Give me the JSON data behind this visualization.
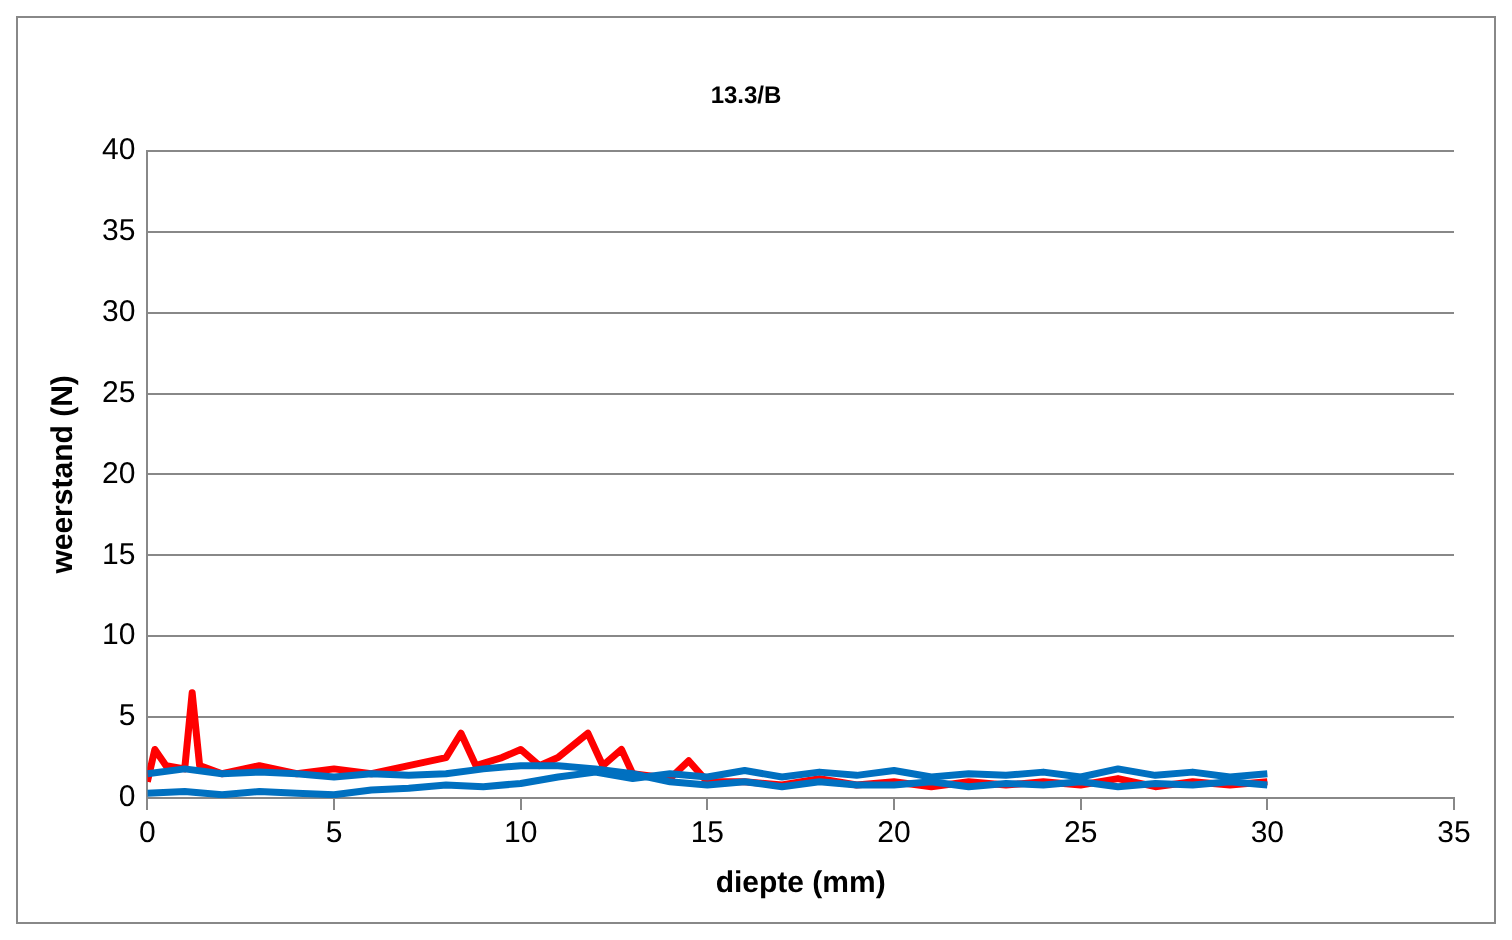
{
  "chart_data": {
    "type": "line",
    "title": "13.3/B",
    "xlabel": "diepte (mm)",
    "ylabel": "weerstand (N)",
    "xlim": [
      0,
      35
    ],
    "xticks": [
      0,
      5,
      10,
      15,
      20,
      25,
      30,
      35
    ],
    "ylim": [
      0,
      40
    ],
    "yticks": [
      0,
      5,
      10,
      15,
      20,
      25,
      30,
      35,
      40
    ],
    "grid": "y",
    "legend": false,
    "marker": "none",
    "line_style": "solid",
    "series": [
      {
        "color": "#0070c0",
        "x": [
          0,
          1,
          2,
          3,
          4,
          5,
          6,
          7,
          8,
          9,
          10,
          11,
          12,
          13,
          14,
          15,
          16,
          17,
          18,
          19,
          20,
          21,
          22,
          23,
          24,
          25,
          26,
          27,
          28,
          29,
          30
        ],
        "values": [
          0.3,
          0.4,
          0.2,
          0.4,
          0.3,
          0.2,
          0.5,
          0.6,
          0.8,
          0.7,
          0.9,
          1.3,
          1.6,
          1.2,
          1.5,
          1.3,
          1.7,
          1.3,
          1.6,
          1.4,
          1.7,
          1.3,
          1.5,
          1.4,
          1.6,
          1.3,
          1.8,
          1.4,
          1.6,
          1.3,
          1.5
        ]
      },
      {
        "color": "#0070c0",
        "x": [
          0,
          1,
          2,
          3,
          4,
          5,
          6,
          7,
          8,
          9,
          10,
          11,
          12,
          13,
          14,
          15,
          16,
          17,
          18,
          19,
          20,
          21,
          22,
          23,
          24,
          25,
          26,
          27,
          28,
          29,
          30
        ],
        "values": [
          1.5,
          1.8,
          1.5,
          1.6,
          1.5,
          1.3,
          1.5,
          1.4,
          1.5,
          1.8,
          2,
          2,
          1.8,
          1.5,
          1,
          0.8,
          1,
          0.7,
          1,
          0.8,
          0.8,
          1,
          0.7,
          0.9,
          0.8,
          1,
          0.7,
          0.9,
          0.8,
          1,
          0.8
        ]
      },
      {
        "color": "#ff0000",
        "x": [
          0,
          0.2,
          0.5,
          1,
          1.2,
          1.4,
          2,
          3,
          4,
          5,
          6,
          7,
          8,
          8.4,
          8.8,
          9.5,
          10,
          10.5,
          11,
          11.8,
          12.2,
          12.7,
          13,
          14,
          14.5,
          15,
          16,
          17,
          18,
          19,
          20,
          21,
          22,
          23,
          24,
          25,
          26,
          27,
          28,
          29,
          30
        ],
        "values": [
          1,
          3,
          2,
          1.8,
          6.5,
          2,
          1.5,
          2,
          1.5,
          1.8,
          1.5,
          2,
          2.5,
          4,
          2,
          2.5,
          3,
          2,
          2.5,
          4,
          2,
          3,
          1.5,
          1.2,
          2.3,
          1,
          1,
          0.8,
          1.2,
          0.8,
          1,
          0.7,
          1,
          0.8,
          1,
          0.8,
          1.2,
          0.7,
          1,
          0.8,
          1
        ]
      }
    ]
  }
}
